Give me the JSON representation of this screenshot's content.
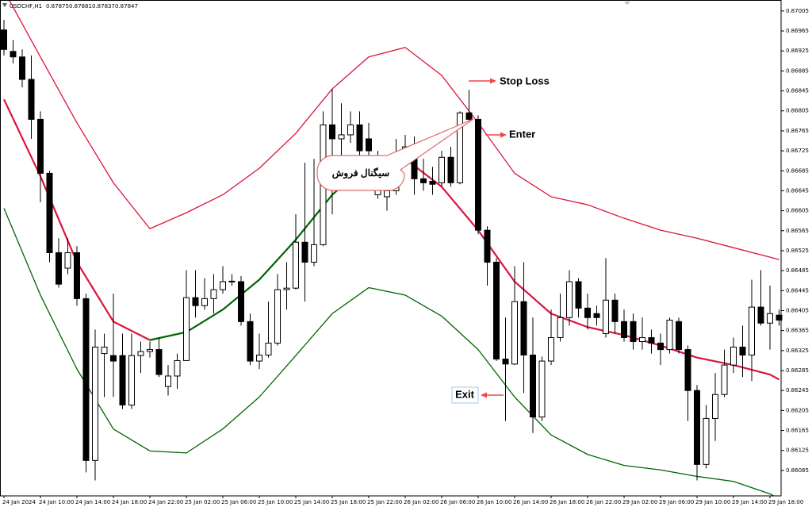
{
  "header": {
    "symbol": "USDCHF,H1",
    "quote": [
      0.87875,
      0.87881,
      0.87837,
      0.87847
    ]
  },
  "chart_data": {
    "type": "candlestick",
    "categories": [
      "24 Jan 2024",
      null,
      null,
      null,
      "24 Jan 10:00",
      null,
      null,
      null,
      "24 Jan 14:00",
      null,
      null,
      null,
      "24 Jan 18:00",
      null,
      null,
      null,
      "24 Jan 22:00",
      null,
      null,
      null,
      "25 Jan 02:00",
      null,
      null,
      null,
      "25 Jan 06:00",
      null,
      null,
      null,
      "25 Jan 10:00",
      null,
      null,
      null,
      "25 Jan 14:00",
      null,
      null,
      null,
      "25 Jan 18:00",
      null,
      null,
      null,
      "25 Jan 22:00",
      null,
      null,
      null,
      "26 Jan 02:00",
      null,
      null,
      null,
      "26 Jan 06:00",
      null,
      null,
      null,
      "26 Jan 10:00",
      null,
      null,
      null,
      "26 Jan 14:00",
      null,
      null,
      null,
      "26 Jan 18:00",
      null,
      null,
      null,
      "26 Jan 22:00",
      null,
      null,
      null,
      "29 Jan 02:00",
      null,
      null,
      null,
      "29 Jan 06:00",
      null,
      null,
      null,
      "29 Jan 10:00",
      null,
      null,
      null,
      "29 Jan 14:00",
      null,
      null,
      null,
      "29 Jan 18:00",
      null
    ],
    "open": [
      0.86967,
      0.86924,
      0.86913,
      0.86868,
      0.86788,
      0.8668,
      0.86521,
      0.8649,
      0.86521,
      0.86429,
      0.86105,
      0.86319,
      0.86315,
      0.86315,
      0.86216,
      0.86315,
      0.86323,
      0.86327,
      0.86253,
      0.86274,
      0.86305,
      0.86431,
      0.86415,
      0.86429,
      0.86447,
      0.86463,
      0.86463,
      0.86383,
      0.86304,
      0.86316,
      0.8634,
      0.86447,
      0.8645,
      0.86542,
      0.86502,
      0.86537,
      0.86777,
      0.86749,
      0.86757,
      0.86777,
      0.86749,
      0.86637,
      0.86633,
      0.86645,
      0.86717,
      0.86725,
      0.86669,
      0.86664,
      0.86661,
      0.86712,
      0.86661,
      0.86801,
      0.86788,
      0.86566,
      0.86502,
      0.86308,
      0.86298,
      0.86423,
      0.86316,
      0.86192,
      0.86304,
      0.86351,
      0.86391,
      0.86463,
      0.8641,
      0.86399,
      0.86359,
      0.86426,
      0.86383,
      0.86383,
      0.86343,
      0.86351,
      0.8634,
      0.86327,
      0.86383,
      0.86327,
      0.86245,
      0.86097,
      0.86189,
      0.86237,
      0.86296,
      0.86332,
      0.86316,
      0.86412,
      0.8638,
      0.86396
    ],
    "high": [
      0.86987,
      0.86947,
      0.86928,
      0.86916,
      0.86804,
      0.86685,
      0.8655,
      0.8655,
      0.86534,
      0.86439,
      0.86367,
      0.86359,
      0.86439,
      0.86359,
      0.86359,
      0.86343,
      0.86343,
      0.86351,
      0.86296,
      0.86319,
      0.86486,
      0.86486,
      0.8647,
      0.86478,
      0.86494,
      0.86478,
      0.86474,
      0.86399,
      0.86359,
      0.86423,
      0.86478,
      0.86502,
      0.86598,
      0.86701,
      0.86709,
      0.86804,
      0.86849,
      0.8682,
      0.86804,
      0.86804,
      0.86781,
      0.86725,
      0.86653,
      0.86749,
      0.86757,
      0.86754,
      0.86709,
      0.86693,
      0.86725,
      0.86733,
      0.86804,
      0.86847,
      0.86796,
      0.86574,
      0.8651,
      0.86391,
      0.86494,
      0.86502,
      0.86391,
      0.86313,
      0.86407,
      0.86439,
      0.86486,
      0.8647,
      0.86439,
      0.86415,
      0.8651,
      0.86439,
      0.86407,
      0.86399,
      0.86391,
      0.86367,
      0.86359,
      0.86391,
      0.86391,
      0.86335,
      0.86256,
      0.86216,
      0.8628,
      0.86327,
      0.86351,
      0.86375,
      0.86467,
      0.86486,
      0.86455,
      0.86407
    ],
    "low": [
      0.86916,
      0.869,
      0.86852,
      0.86749,
      0.86622,
      0.86502,
      0.86451,
      0.86478,
      0.86415,
      0.86081,
      0.86065,
      0.86232,
      0.86232,
      0.86208,
      0.86208,
      0.8628,
      0.86311,
      0.86272,
      0.86235,
      0.86248,
      0.86304,
      0.86391,
      0.86407,
      0.86399,
      0.86439,
      0.86455,
      0.86375,
      0.86296,
      0.86288,
      0.86311,
      0.86335,
      0.86407,
      0.86447,
      0.86423,
      0.86494,
      0.86534,
      0.86598,
      0.86709,
      0.86741,
      0.86661,
      0.86709,
      0.86629,
      0.86605,
      0.86637,
      0.86709,
      0.86637,
      0.86645,
      0.86637,
      0.86653,
      0.86653,
      0.86658,
      0.86785,
      0.86558,
      0.86455,
      0.86304,
      0.86184,
      0.86296,
      0.8624,
      0.8616,
      0.86184,
      0.86296,
      0.86343,
      0.86375,
      0.86391,
      0.86367,
      0.86375,
      0.86351,
      0.86359,
      0.86343,
      0.86327,
      0.86327,
      0.86319,
      0.86296,
      0.86319,
      0.86319,
      0.86184,
      0.86065,
      0.86089,
      0.86144,
      0.86232,
      0.8628,
      0.86272,
      0.86264,
      0.86375,
      0.86327,
      0.86375
    ],
    "close": [
      0.86928,
      0.86913,
      0.86868,
      0.86788,
      0.8668,
      0.86521,
      0.86458,
      0.86521,
      0.86429,
      0.86105,
      0.86332,
      0.86332,
      0.86304,
      0.86216,
      0.86315,
      0.86323,
      0.86327,
      0.86277,
      0.86274,
      0.86305,
      0.86431,
      0.86415,
      0.86429,
      0.86447,
      0.86463,
      0.86464,
      0.86383,
      0.86304,
      0.86316,
      0.8634,
      0.86447,
      0.8645,
      0.86542,
      0.86502,
      0.86537,
      0.86777,
      0.86749,
      0.86757,
      0.86777,
      0.86725,
      0.86725,
      0.86709,
      0.86645,
      0.86717,
      0.86733,
      0.86669,
      0.86661,
      0.86658,
      0.86712,
      0.86661,
      0.86801,
      0.86788,
      0.86566,
      0.86502,
      0.86308,
      0.86298,
      0.86423,
      0.86316,
      0.86192,
      0.86304,
      0.86351,
      0.86391,
      0.86463,
      0.8641,
      0.86391,
      0.86391,
      0.86426,
      0.86383,
      0.86351,
      0.86343,
      0.86351,
      0.8634,
      0.86327,
      0.86386,
      0.86327,
      0.86245,
      0.86097,
      0.86189,
      0.86237,
      0.86296,
      0.86332,
      0.86316,
      0.86412,
      0.8638,
      0.86399,
      0.86386
    ],
    "up_color": "#ffffff",
    "down_color": "#000000",
    "ylim": [
      0.86034,
      0.87027
    ],
    "yticks": [
      0.87005,
      0.86965,
      0.86925,
      0.86885,
      0.86845,
      0.86805,
      0.86765,
      0.86725,
      0.86685,
      0.86645,
      0.86605,
      0.86565,
      0.86525,
      0.86485,
      0.86445,
      0.86405,
      0.86365,
      0.86325,
      0.86285,
      0.86245,
      0.86205,
      0.86165,
      0.86125,
      0.86085
    ],
    "grid": false,
    "bands": {
      "x": [
        0,
        4,
        8,
        12,
        16,
        20,
        24,
        28,
        32,
        36,
        40,
        44,
        48,
        52,
        56,
        60,
        64,
        68,
        72,
        76,
        80,
        84,
        85
      ],
      "series": [
        {
          "color": "#dc143c",
          "width": 1.3,
          "values": [
            0.87046,
            0.86913,
            0.86781,
            0.86661,
            0.86569,
            0.86601,
            0.86637,
            0.8669,
            0.8676,
            0.86849,
            0.86913,
            0.86932,
            0.86876,
            0.86781,
            0.8668,
            0.86633,
            0.86617,
            0.8659,
            0.86566,
            0.8655,
            0.86531,
            0.86512,
            0.86507
          ]
        },
        {
          "color": "#dc143c",
          "width": 2.2,
          "values": [
            0.86828,
            0.86674,
            0.86502,
            0.86383,
            0.86346,
            null,
            null,
            null,
            null,
            null,
            null,
            0.86709,
            0.86653,
            0.86566,
            0.86463,
            0.86399,
            0.86372,
            0.86356,
            0.86335,
            0.86311,
            0.86296,
            0.86277,
            0.86267
          ]
        },
        {
          "color": "#006400",
          "width": 2.2,
          "values": [
            null,
            null,
            null,
            null,
            0.86346,
            0.86362,
            0.86407,
            0.86467,
            0.86547,
            0.86637,
            0.86701,
            0.86709,
            null,
            null,
            null,
            null,
            null,
            null,
            null,
            null,
            null,
            null,
            null
          ]
        },
        {
          "color": "#006400",
          "width": 1.3,
          "values": [
            0.8661,
            0.86436,
            0.86288,
            0.86168,
            0.86124,
            0.8612,
            0.86168,
            0.86232,
            0.86315,
            0.86399,
            0.86451,
            0.86436,
            0.86394,
            0.86327,
            0.86232,
            0.86156,
            0.86117,
            0.86095,
            0.86086,
            0.86073,
            0.86063,
            0.86038,
            0.86028
          ]
        }
      ]
    },
    "annotations": [
      {
        "text": "Stop Loss",
        "color": "#f0474a"
      },
      {
        "text": "Enter",
        "color": "#1f9a2a"
      },
      {
        "text": "Exit",
        "color": "#1d4fd8"
      },
      {
        "text": "سیگنال فروش",
        "color": "#000000"
      }
    ]
  }
}
